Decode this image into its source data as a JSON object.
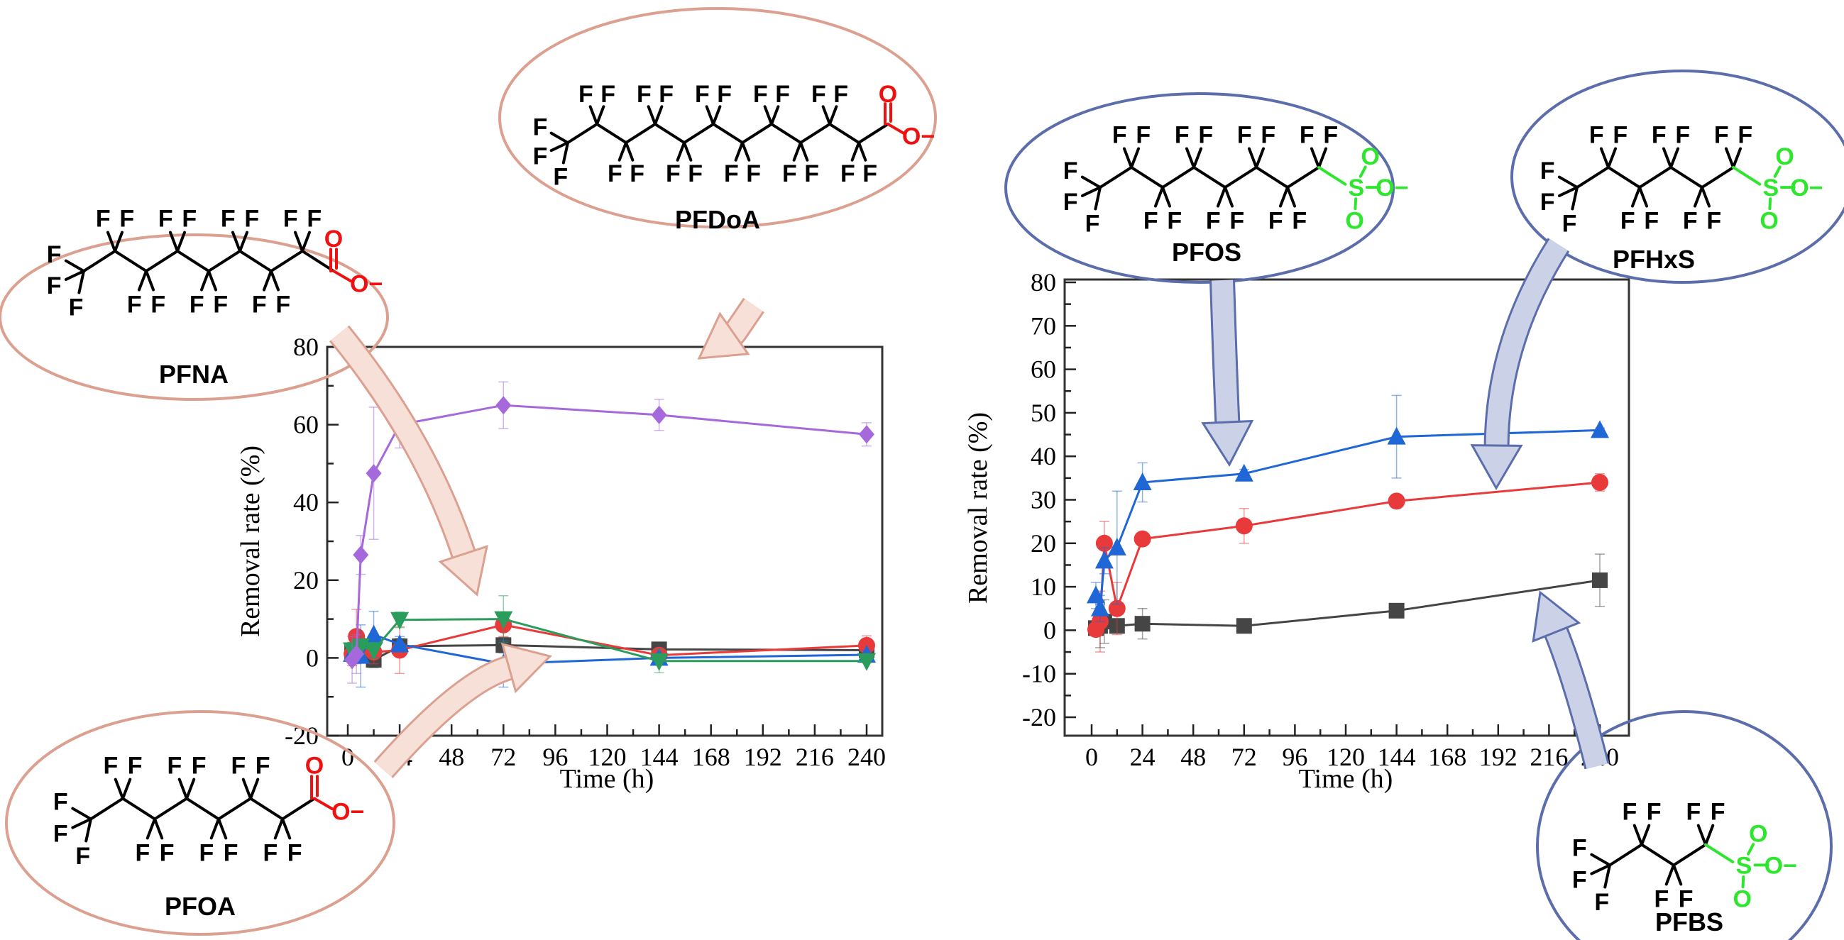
{
  "colors": {
    "left_outline": "#dca090",
    "left_fill": "#f6e0d8",
    "right_outline": "#5b6daa",
    "right_fill": "#cbd2e8",
    "carboxylate": "#ee1111",
    "sulfonate": "#2ee62e",
    "bond": "#000000"
  },
  "chart_data": [
    {
      "type": "line",
      "panel": "left",
      "title": "",
      "xlabel": "Time (h)",
      "ylabel": "Removal rate (%)",
      "xlim": [
        0,
        240
      ],
      "ylim": [
        -20,
        80
      ],
      "xticks": [
        0,
        24,
        48,
        72,
        96,
        120,
        144,
        168,
        192,
        216,
        240
      ],
      "yticks": [
        -20,
        0,
        20,
        40,
        60,
        80
      ],
      "grid": false,
      "x": [
        2,
        4,
        6,
        12,
        24,
        72,
        144,
        240
      ],
      "series": [
        {
          "name": "black",
          "color": "#454545",
          "marker": "square",
          "values": [
            1.5,
            2,
            3,
            -0.5,
            3,
            3.3,
            2.2,
            2
          ],
          "err": [
            2,
            2,
            2,
            2,
            2,
            2,
            1,
            1
          ]
        },
        {
          "name": "red",
          "color": "#e83a3a",
          "marker": "circle",
          "values": [
            1,
            5.5,
            2,
            1.5,
            2,
            8.5,
            0.7,
            3.2
          ],
          "err": [
            3,
            7,
            3,
            3,
            6,
            3,
            1,
            2.5
          ]
        },
        {
          "name": "PFOA",
          "color": "#1f66d6",
          "marker": "triangle-up",
          "values": [
            1,
            1.5,
            0.5,
            6,
            3.5,
            -1.5,
            0,
            0.8
          ],
          "err": [
            2,
            2,
            8,
            6,
            2,
            6,
            1,
            1
          ]
        },
        {
          "name": "PFNA",
          "color": "#2a9d5c",
          "marker": "triangle-down",
          "values": [
            2,
            2,
            3,
            2,
            9.8,
            10,
            -0.8,
            -0.8
          ],
          "err": [
            2,
            2,
            2,
            2,
            2,
            6,
            3,
            0.5
          ]
        },
        {
          "name": "PFDoA",
          "color": "#a569dc",
          "marker": "diamond",
          "values": [
            -0.5,
            1,
            26.5,
            47.5,
            60,
            65,
            62.5,
            57.5
          ],
          "err": [
            6,
            5,
            5,
            17,
            6,
            6,
            4,
            3
          ]
        }
      ]
    },
    {
      "type": "line",
      "panel": "right",
      "title": "",
      "xlabel": "Time (h)",
      "ylabel": "Removal rate (%)",
      "xlim": [
        0,
        240
      ],
      "ylim": [
        -20,
        80
      ],
      "xticks": [
        0,
        24,
        48,
        72,
        96,
        120,
        144,
        168,
        192,
        216,
        240
      ],
      "yticks": [
        -20,
        -10,
        0,
        10,
        20,
        30,
        40,
        50,
        60,
        70,
        80
      ],
      "grid": false,
      "x": [
        2,
        4,
        6,
        12,
        24,
        72,
        144,
        240
      ],
      "series": [
        {
          "name": "PFBS",
          "color": "#454545",
          "marker": "square",
          "values": [
            0.5,
            1,
            2,
            1,
            1.5,
            1,
            4.5,
            11.5
          ],
          "err": [
            1,
            5,
            5,
            1,
            3.5,
            0.5,
            0.5,
            6
          ]
        },
        {
          "name": "PFHxS",
          "color": "#e83a3a",
          "marker": "circle",
          "values": [
            0.2,
            2,
            20,
            5,
            21,
            24,
            29.7,
            34
          ],
          "err": [
            1,
            7,
            5,
            6,
            0.5,
            4,
            1.5,
            2
          ]
        },
        {
          "name": "PFOS",
          "color": "#1f66d6",
          "marker": "triangle-up",
          "values": [
            8,
            5,
            16,
            19,
            34,
            36,
            44.5,
            46
          ],
          "err": [
            3,
            3,
            3,
            13,
            4.5,
            1,
            9.5,
            0.5
          ]
        }
      ]
    }
  ],
  "molecules": [
    {
      "name": "PFNA",
      "side": "left",
      "fluorinated_carbons": 8,
      "head": "carboxylate",
      "atom": "F",
      "head_atom": "O",
      "head_anion": "O−"
    },
    {
      "name": "PFDoA",
      "side": "left",
      "fluorinated_carbons": 11,
      "head": "carboxylate",
      "atom": "F",
      "head_atom": "O",
      "head_anion": "O−"
    },
    {
      "name": "PFOA",
      "side": "left",
      "fluorinated_carbons": 7,
      "head": "carboxylate",
      "atom": "F",
      "head_atom": "O",
      "head_anion": "O−"
    },
    {
      "name": "PFOS",
      "side": "right",
      "fluorinated_carbons": 8,
      "head": "sulfonate",
      "atom": "F",
      "head_atom": "O",
      "head_anion": "O−",
      "head_center": "S"
    },
    {
      "name": "PFHxS",
      "side": "right",
      "fluorinated_carbons": 6,
      "head": "sulfonate",
      "atom": "F",
      "head_atom": "O",
      "head_anion": "O−",
      "head_center": "S"
    },
    {
      "name": "PFBS",
      "side": "right",
      "fluorinated_carbons": 4,
      "head": "sulfonate",
      "atom": "F",
      "head_atom": "O",
      "head_anion": "O−",
      "head_center": "S"
    }
  ]
}
